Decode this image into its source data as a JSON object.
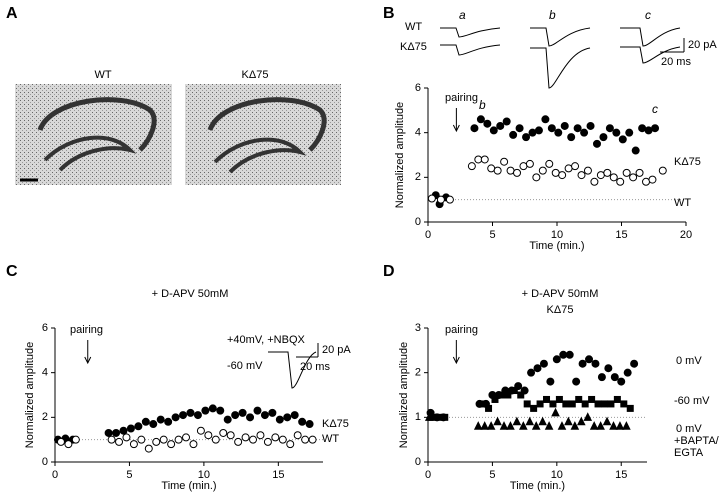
{
  "panel_a": {
    "letter": "A",
    "labels": [
      "WT",
      "KΔ75"
    ]
  },
  "traces": {
    "labels": [
      "WT",
      "KΔ75"
    ],
    "letters": [
      "a",
      "b",
      "c"
    ],
    "scale": [
      "20 pA",
      "20 ms"
    ]
  },
  "inset": {
    "labels": [
      "+40mV, +NBQX",
      "-60 mV"
    ],
    "scale": [
      "20 pA",
      "20 ms"
    ]
  },
  "chart_data": [
    {
      "type": "scatter",
      "letter": "B",
      "xlabel": "Time (min.)",
      "ylabel": "Normalized amplitude",
      "xlim": [
        0,
        20
      ],
      "ylim": [
        0,
        6
      ],
      "xticks": [
        0,
        5,
        10,
        15,
        20
      ],
      "yticks": [
        0,
        2,
        4,
        6
      ],
      "hline": 1,
      "annotations": [
        "pairing",
        "b",
        "c"
      ],
      "series": [
        {
          "name": "KΔ75",
          "marker": "circle",
          "color": "#000000",
          "x": [
            0.6,
            0.9,
            1.4,
            3.6,
            4.1,
            4.6,
            5.1,
            5.6,
            6.1,
            6.6,
            7.1,
            7.6,
            8.1,
            8.6,
            9.1,
            9.6,
            10.1,
            10.6,
            11.1,
            11.6,
            12.1,
            12.6,
            13.1,
            13.6,
            14.1,
            14.6,
            15.1,
            15.6,
            16.1,
            16.6,
            17.1,
            17.6
          ],
          "values": [
            1.2,
            0.8,
            1.1,
            4.2,
            4.6,
            4.4,
            4.1,
            4.3,
            4.5,
            3.9,
            4.2,
            3.8,
            4.0,
            4.1,
            4.6,
            4.2,
            4.0,
            4.3,
            3.8,
            4.2,
            4.0,
            4.3,
            3.5,
            3.8,
            4.2,
            4.0,
            3.7,
            4.0,
            3.2,
            4.2,
            4.1,
            4.2
          ]
        },
        {
          "name": "WT",
          "marker": "circle",
          "color": "#ffffff",
          "x": [
            0.3,
            1.0,
            1.7,
            3.4,
            3.9,
            4.4,
            4.9,
            5.4,
            5.9,
            6.4,
            6.9,
            7.4,
            7.9,
            8.4,
            8.9,
            9.4,
            9.9,
            10.4,
            10.9,
            11.4,
            11.9,
            12.4,
            12.9,
            13.4,
            13.9,
            14.4,
            14.9,
            15.4,
            15.9,
            16.4,
            16.9,
            17.4,
            18.2
          ],
          "values": [
            1.05,
            1.0,
            1.0,
            2.5,
            2.8,
            2.8,
            2.4,
            2.3,
            2.7,
            2.3,
            2.2,
            2.5,
            2.6,
            2.0,
            2.3,
            2.6,
            2.2,
            2.1,
            2.4,
            2.5,
            2.1,
            2.3,
            1.8,
            2.1,
            2.2,
            2.0,
            1.8,
            2.2,
            2.0,
            2.2,
            1.8,
            1.9,
            2.3
          ]
        }
      ]
    },
    {
      "type": "scatter",
      "letter": "C",
      "title": "+ D-APV 50mM",
      "xlabel": "Time (min.)",
      "ylabel": "Normalized amplitude",
      "xlim": [
        0,
        18
      ],
      "ylim": [
        0,
        6
      ],
      "xticks": [
        0,
        5,
        10,
        15
      ],
      "yticks": [
        0,
        2,
        4,
        6
      ],
      "hline": 1,
      "annotations": [
        "pairing"
      ],
      "series": [
        {
          "name": "KΔ75",
          "marker": "circle",
          "color": "#000000",
          "x": [
            0.2,
            0.7,
            1.2,
            3.6,
            4.1,
            4.6,
            5.1,
            5.6,
            6.1,
            6.6,
            7.1,
            7.6,
            8.1,
            8.6,
            9.1,
            9.6,
            10.1,
            10.6,
            11.1,
            11.6,
            12.1,
            12.6,
            13.1,
            13.6,
            14.1,
            14.6,
            15.1,
            15.6,
            16.1,
            16.6,
            17.1
          ],
          "values": [
            1.0,
            1.05,
            1.0,
            1.3,
            1.3,
            1.4,
            1.5,
            1.6,
            1.8,
            1.7,
            1.9,
            1.8,
            2.0,
            2.1,
            2.2,
            2.1,
            2.3,
            2.4,
            2.3,
            1.9,
            2.1,
            2.2,
            2.0,
            2.3,
            2.1,
            2.2,
            1.9,
            2.0,
            2.1,
            1.8,
            1.7
          ]
        },
        {
          "name": "WT",
          "marker": "circle",
          "color": "#ffffff",
          "x": [
            0.4,
            0.9,
            1.4,
            3.8,
            4.3,
            4.8,
            5.3,
            5.8,
            6.3,
            6.8,
            7.3,
            7.8,
            8.3,
            8.8,
            9.3,
            9.8,
            10.3,
            10.8,
            11.3,
            11.8,
            12.3,
            12.8,
            13.3,
            13.8,
            14.3,
            14.8,
            15.3,
            15.8,
            16.3,
            16.8,
            17.3
          ],
          "values": [
            0.9,
            0.8,
            1.0,
            1.0,
            0.9,
            1.1,
            0.8,
            1.0,
            0.6,
            0.9,
            1.0,
            0.8,
            1.0,
            1.1,
            0.8,
            1.4,
            1.2,
            1.0,
            1.3,
            1.2,
            0.9,
            1.1,
            1.0,
            1.2,
            0.9,
            1.1,
            1.0,
            0.8,
            1.2,
            1.0,
            1.0
          ]
        }
      ]
    },
    {
      "type": "scatter",
      "letter": "D",
      "title": "+ D-APV 50mM",
      "subtitle": "KΔ75",
      "xlabel": "Time (min.)",
      "ylabel": "Normalized amplitude",
      "xlim": [
        0,
        17
      ],
      "ylim": [
        0,
        3
      ],
      "xticks": [
        0,
        5,
        10,
        15
      ],
      "yticks": [
        0,
        1,
        2,
        3
      ],
      "hline": 1,
      "annotations": [
        "pairing",
        "+BAPTA/",
        "EGTA"
      ],
      "series": [
        {
          "name": "0 mV",
          "marker": "circle",
          "color": "#000000",
          "x": [
            0.2,
            0.7,
            1.2,
            4.0,
            4.5,
            5.0,
            5.5,
            6.0,
            6.5,
            7.0,
            7.5,
            8.0,
            8.5,
            9.0,
            9.5,
            10.0,
            10.5,
            11.0,
            11.5,
            12.0,
            12.5,
            13.0,
            13.5,
            14.0,
            14.5,
            15.0,
            15.5,
            16.0
          ],
          "values": [
            1.1,
            1.0,
            1.0,
            1.3,
            1.3,
            1.5,
            1.5,
            1.6,
            1.6,
            1.7,
            1.6,
            2.0,
            2.1,
            2.2,
            1.8,
            2.3,
            2.4,
            2.4,
            1.8,
            2.2,
            2.3,
            2.2,
            1.9,
            2.1,
            1.9,
            1.8,
            2.0,
            2.2
          ]
        },
        {
          "name": "-60 mV",
          "marker": "square",
          "color": "#000000",
          "x": [
            0.3,
            0.8,
            1.3,
            4.2,
            4.7,
            5.2,
            5.7,
            6.2,
            6.7,
            7.2,
            7.7,
            8.2,
            8.7,
            9.2,
            9.7,
            10.2,
            10.7,
            11.2,
            11.7,
            12.2,
            12.7,
            13.2,
            13.7,
            14.2,
            14.7,
            15.2,
            15.7
          ],
          "values": [
            1.0,
            1.0,
            1.0,
            1.3,
            1.2,
            1.4,
            1.5,
            1.5,
            1.6,
            1.5,
            1.3,
            1.2,
            1.3,
            1.4,
            1.3,
            1.4,
            1.3,
            1.3,
            1.4,
            1.3,
            1.4,
            1.3,
            1.3,
            1.3,
            1.4,
            1.3,
            1.2
          ]
        },
        {
          "name": "0 mV",
          "marker": "triangle",
          "color": "#000000",
          "x": [
            0.1,
            3.9,
            4.4,
            4.9,
            5.4,
            5.9,
            6.4,
            6.9,
            7.4,
            7.9,
            8.4,
            8.9,
            9.4,
            9.9,
            10.4,
            10.9,
            11.4,
            11.9,
            12.4,
            12.9,
            13.4,
            13.9,
            14.4,
            14.9,
            15.4
          ],
          "values": [
            1.0,
            0.8,
            0.8,
            0.8,
            0.9,
            0.8,
            0.8,
            0.9,
            0.8,
            0.9,
            0.8,
            0.9,
            0.8,
            1.1,
            0.8,
            0.9,
            0.8,
            0.9,
            1.0,
            0.8,
            0.8,
            0.9,
            0.8,
            0.8,
            0.8
          ]
        }
      ]
    }
  ]
}
